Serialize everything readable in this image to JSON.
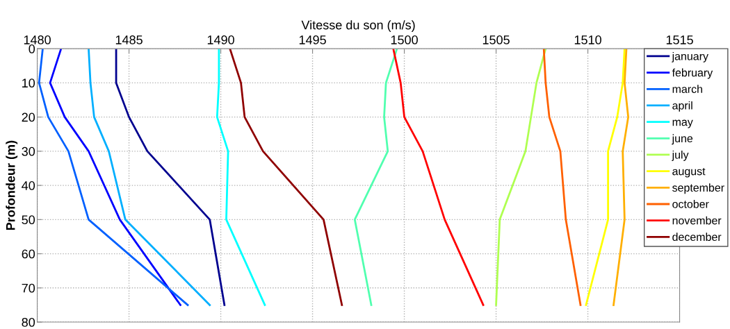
{
  "chart_data": {
    "type": "line",
    "xlabel": "Vitesse du son (m/s)",
    "ylabel": "Profondeur (m)",
    "xlim": [
      1480,
      1515
    ],
    "xticks": [
      1480,
      1485,
      1490,
      1495,
      1500,
      1505,
      1510,
      1515
    ],
    "ylim": [
      80,
      0
    ],
    "yticks": [
      0,
      10,
      20,
      30,
      40,
      50,
      60,
      70,
      80
    ],
    "grid": true,
    "legend": "top right",
    "marker": "none",
    "line_style": "solid",
    "series": [
      {
        "name": "january",
        "color": "#00008f",
        "x": [
          1484.3,
          1484.3,
          1485.0,
          1486.0,
          1489.4,
          1490.2
        ],
        "values": [
          0,
          10,
          20,
          30,
          50,
          75
        ]
      },
      {
        "name": "february",
        "color": "#0000ff",
        "x": [
          1481.3,
          1480.7,
          1481.5,
          1482.8,
          1484.5,
          1487.8
        ],
        "values": [
          0,
          10,
          20,
          30,
          50,
          75
        ]
      },
      {
        "name": "march",
        "color": "#0060ff",
        "x": [
          1480.3,
          1480.1,
          1480.6,
          1481.7,
          1482.8,
          1488.2
        ],
        "values": [
          0,
          10,
          20,
          30,
          50,
          75
        ]
      },
      {
        "name": "april",
        "color": "#00afff",
        "x": [
          1482.8,
          1482.9,
          1483.1,
          1483.9,
          1484.8,
          1489.4
        ],
        "values": [
          0,
          10,
          20,
          30,
          50,
          75
        ]
      },
      {
        "name": "may",
        "color": "#00ffff",
        "x": [
          1489.9,
          1489.9,
          1489.8,
          1490.4,
          1490.3,
          1492.4
        ],
        "values": [
          0,
          10,
          20,
          30,
          50,
          75
        ]
      },
      {
        "name": "june",
        "color": "#50ffaf",
        "x": [
          1499.6,
          1499.0,
          1498.9,
          1499.1,
          1497.3,
          1498.2
        ],
        "values": [
          0,
          10,
          20,
          30,
          50,
          75
        ]
      },
      {
        "name": "july",
        "color": "#afff50",
        "x": [
          1507.7,
          1507.2,
          1506.9,
          1506.6,
          1505.2,
          1505.0
        ],
        "values": [
          0,
          10,
          20,
          30,
          50,
          75
        ]
      },
      {
        "name": "august",
        "color": "#ffff00",
        "x": [
          1512.0,
          1511.9,
          1511.6,
          1511.1,
          1511.1,
          1509.9
        ],
        "values": [
          0,
          10,
          20,
          30,
          50,
          75
        ]
      },
      {
        "name": "september",
        "color": "#ffaf00",
        "x": [
          1512.1,
          1512.0,
          1512.2,
          1511.9,
          1512.0,
          1511.4
        ],
        "values": [
          0,
          10,
          20,
          30,
          50,
          75
        ]
      },
      {
        "name": "october",
        "color": "#ff6000",
        "x": [
          1507.6,
          1507.7,
          1507.9,
          1508.5,
          1508.8,
          1509.6
        ],
        "values": [
          0,
          10,
          20,
          30,
          50,
          75
        ]
      },
      {
        "name": "november",
        "color": "#ff0000",
        "x": [
          1499.4,
          1499.8,
          1500.0,
          1501.0,
          1502.2,
          1504.3
        ],
        "values": [
          0,
          10,
          20,
          30,
          50,
          75
        ]
      },
      {
        "name": "december",
        "color": "#8f0000",
        "x": [
          1490.5,
          1491.1,
          1491.3,
          1492.3,
          1495.6,
          1496.6
        ],
        "values": [
          0,
          10,
          20,
          30,
          50,
          75
        ]
      }
    ]
  }
}
